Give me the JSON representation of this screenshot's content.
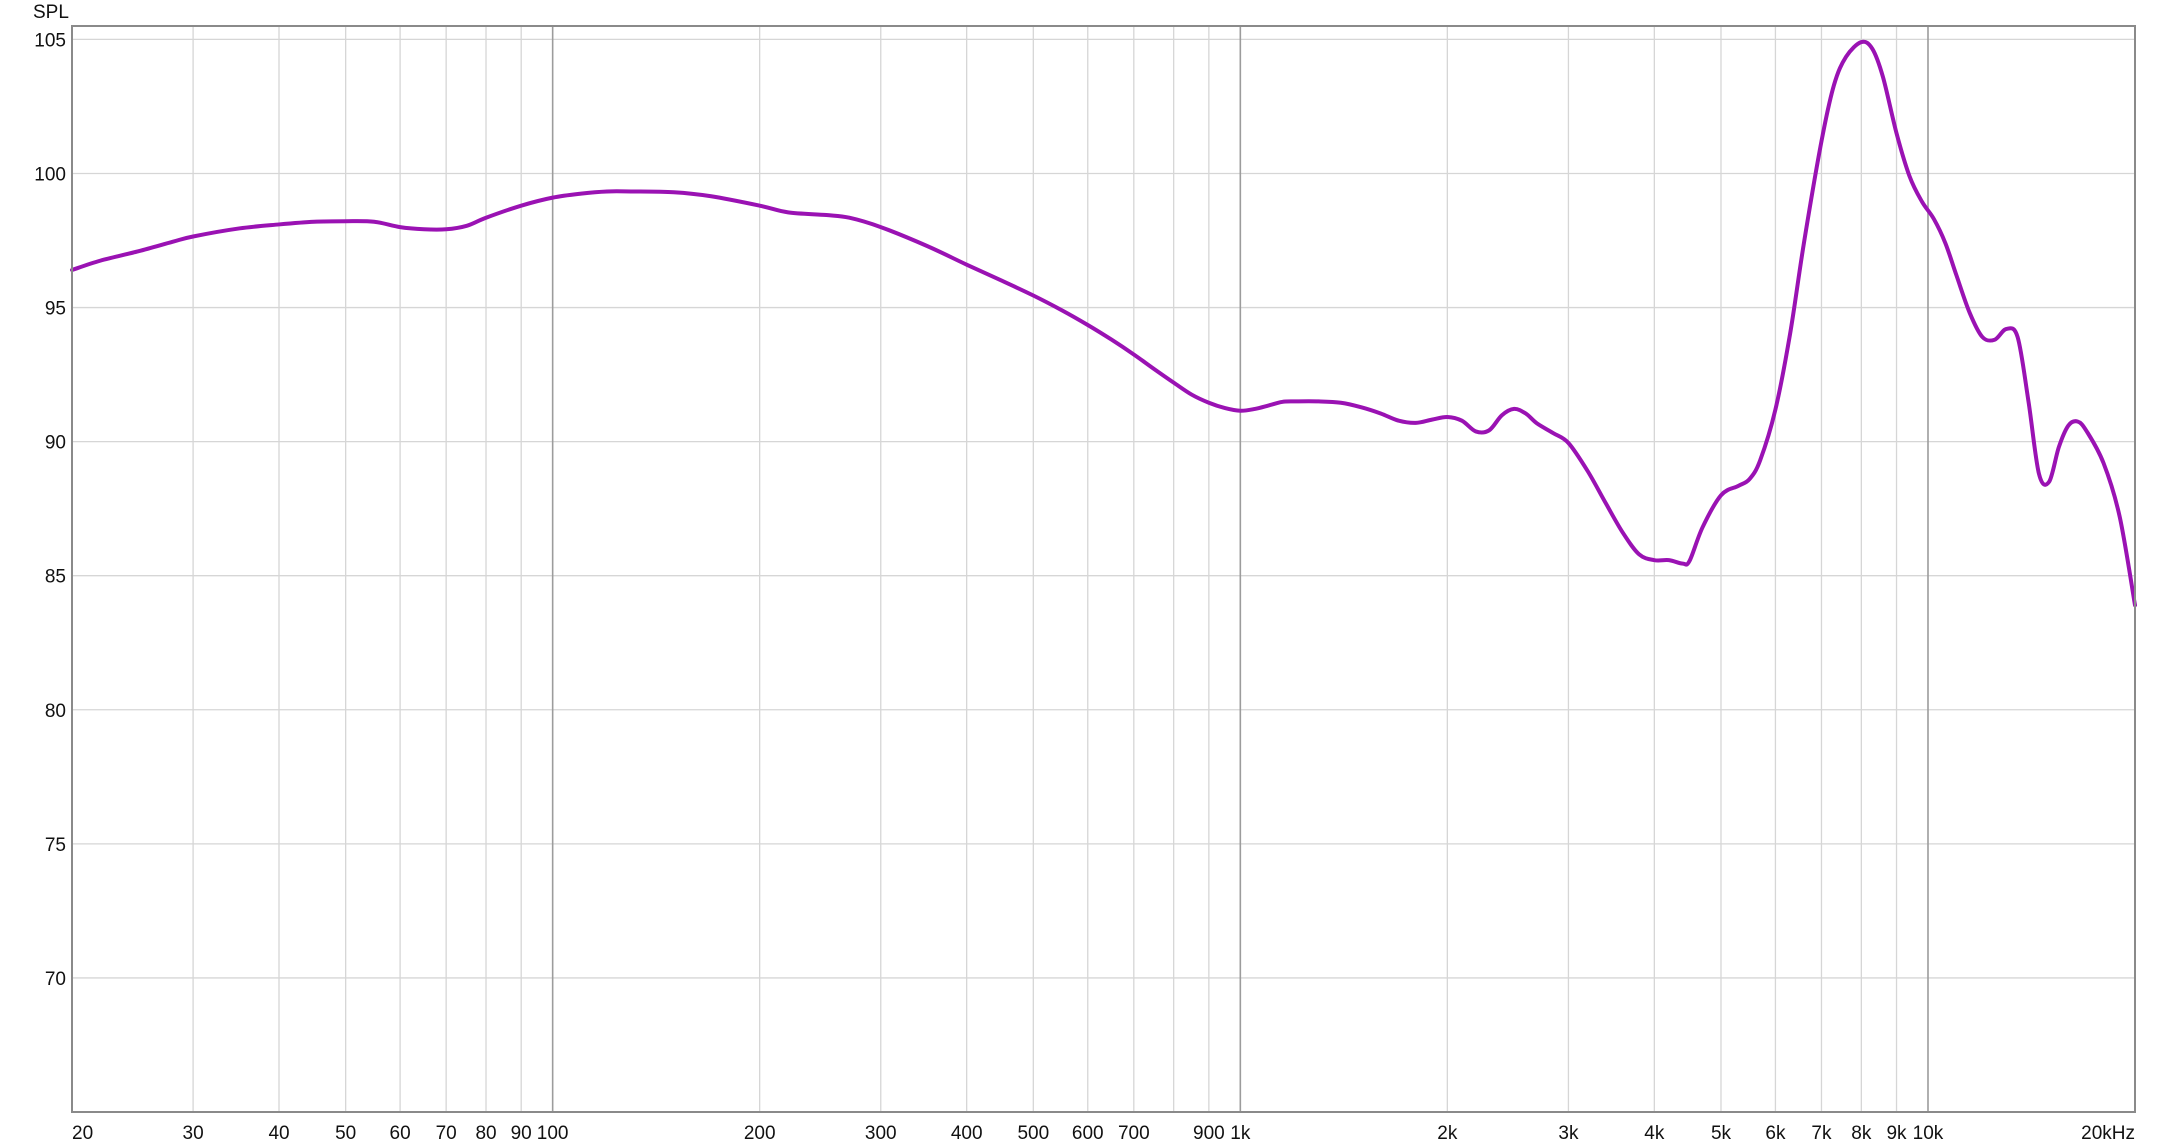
{
  "chart_data": {
    "type": "line",
    "xscale": "log",
    "ylabel": "SPL",
    "xlim": [
      20,
      20000
    ],
    "ylim": [
      65,
      105.5
    ],
    "grid": true,
    "x_ticks": [
      {
        "value": 20,
        "label": "20"
      },
      {
        "value": 30,
        "label": "30"
      },
      {
        "value": 40,
        "label": "40"
      },
      {
        "value": 50,
        "label": "50"
      },
      {
        "value": 60,
        "label": "60"
      },
      {
        "value": 70,
        "label": "70"
      },
      {
        "value": 80,
        "label": "80"
      },
      {
        "value": 90,
        "label": "90"
      },
      {
        "value": 100,
        "label": "100"
      },
      {
        "value": 200,
        "label": "200"
      },
      {
        "value": 300,
        "label": "300"
      },
      {
        "value": 400,
        "label": "400"
      },
      {
        "value": 500,
        "label": "500"
      },
      {
        "value": 600,
        "label": "600"
      },
      {
        "value": 700,
        "label": "700"
      },
      {
        "value": 900,
        "label": "900"
      },
      {
        "value": 1000,
        "label": "1k"
      },
      {
        "value": 2000,
        "label": "2k"
      },
      {
        "value": 3000,
        "label": "3k"
      },
      {
        "value": 4000,
        "label": "4k"
      },
      {
        "value": 5000,
        "label": "5k"
      },
      {
        "value": 6000,
        "label": "6k"
      },
      {
        "value": 7000,
        "label": "7k"
      },
      {
        "value": 8000,
        "label": "8k"
      },
      {
        "value": 9000,
        "label": "9k"
      },
      {
        "value": 10000,
        "label": "10k"
      },
      {
        "value": 20000,
        "label": "20kHz"
      }
    ],
    "x_major_gridlines": [
      100,
      1000,
      10000
    ],
    "x_minor_gridlines": [
      30,
      40,
      50,
      60,
      70,
      80,
      90,
      200,
      300,
      400,
      500,
      600,
      700,
      800,
      900,
      2000,
      3000,
      4000,
      5000,
      6000,
      7000,
      8000,
      9000
    ],
    "y_ticks": [
      70,
      75,
      80,
      85,
      90,
      95,
      100,
      105
    ],
    "series": [
      {
        "color": "#9a12b3",
        "points": [
          [
            20,
            96.4
          ],
          [
            22,
            96.75
          ],
          [
            25,
            97.1
          ],
          [
            28,
            97.45
          ],
          [
            30,
            97.65
          ],
          [
            35,
            97.95
          ],
          [
            40,
            98.1
          ],
          [
            45,
            98.2
          ],
          [
            50,
            98.22
          ],
          [
            55,
            98.2
          ],
          [
            60,
            98.0
          ],
          [
            65,
            97.92
          ],
          [
            70,
            97.92
          ],
          [
            75,
            98.05
          ],
          [
            80,
            98.35
          ],
          [
            90,
            98.8
          ],
          [
            100,
            99.1
          ],
          [
            110,
            99.25
          ],
          [
            120,
            99.33
          ],
          [
            130,
            99.33
          ],
          [
            150,
            99.3
          ],
          [
            170,
            99.15
          ],
          [
            200,
            98.8
          ],
          [
            220,
            98.55
          ],
          [
            250,
            98.45
          ],
          [
            270,
            98.35
          ],
          [
            300,
            98.0
          ],
          [
            350,
            97.3
          ],
          [
            400,
            96.6
          ],
          [
            450,
            96.0
          ],
          [
            500,
            95.45
          ],
          [
            550,
            94.9
          ],
          [
            600,
            94.35
          ],
          [
            650,
            93.8
          ],
          [
            700,
            93.25
          ],
          [
            750,
            92.7
          ],
          [
            800,
            92.2
          ],
          [
            850,
            91.75
          ],
          [
            900,
            91.45
          ],
          [
            950,
            91.25
          ],
          [
            1000,
            91.15
          ],
          [
            1050,
            91.22
          ],
          [
            1100,
            91.35
          ],
          [
            1150,
            91.48
          ],
          [
            1200,
            91.5
          ],
          [
            1300,
            91.5
          ],
          [
            1400,
            91.45
          ],
          [
            1500,
            91.28
          ],
          [
            1600,
            91.05
          ],
          [
            1700,
            90.78
          ],
          [
            1800,
            90.7
          ],
          [
            1900,
            90.82
          ],
          [
            2000,
            90.92
          ],
          [
            2100,
            90.78
          ],
          [
            2200,
            90.38
          ],
          [
            2300,
            90.42
          ],
          [
            2400,
            90.98
          ],
          [
            2500,
            91.22
          ],
          [
            2600,
            91.05
          ],
          [
            2700,
            90.68
          ],
          [
            2850,
            90.32
          ],
          [
            3000,
            89.95
          ],
          [
            3200,
            88.9
          ],
          [
            3400,
            87.7
          ],
          [
            3600,
            86.6
          ],
          [
            3800,
            85.8
          ],
          [
            4000,
            85.58
          ],
          [
            4200,
            85.58
          ],
          [
            4400,
            85.45
          ],
          [
            4500,
            85.55
          ],
          [
            4700,
            86.8
          ],
          [
            5000,
            88.0
          ],
          [
            5300,
            88.35
          ],
          [
            5500,
            88.6
          ],
          [
            5700,
            89.3
          ],
          [
            6000,
            91.2
          ],
          [
            6300,
            94.0
          ],
          [
            6600,
            97.4
          ],
          [
            7000,
            101.2
          ],
          [
            7300,
            103.3
          ],
          [
            7600,
            104.35
          ],
          [
            8000,
            104.9
          ],
          [
            8300,
            104.65
          ],
          [
            8600,
            103.6
          ],
          [
            9000,
            101.5
          ],
          [
            9400,
            99.9
          ],
          [
            9800,
            98.95
          ],
          [
            10200,
            98.3
          ],
          [
            10600,
            97.4
          ],
          [
            11000,
            96.2
          ],
          [
            11500,
            94.8
          ],
          [
            12000,
            93.9
          ],
          [
            12500,
            93.8
          ],
          [
            13000,
            94.2
          ],
          [
            13500,
            93.9
          ],
          [
            14000,
            91.5
          ],
          [
            14500,
            88.8
          ],
          [
            15000,
            88.5
          ],
          [
            15500,
            89.8
          ],
          [
            16000,
            90.6
          ],
          [
            16500,
            90.75
          ],
          [
            17000,
            90.4
          ],
          [
            18000,
            89.2
          ],
          [
            19000,
            87.2
          ],
          [
            20000,
            83.9
          ]
        ]
      }
    ]
  }
}
